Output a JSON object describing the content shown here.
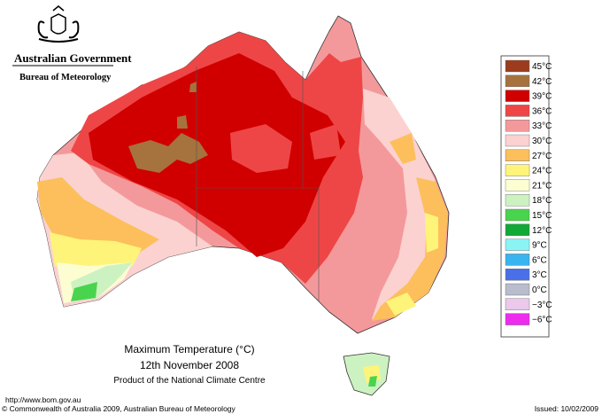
{
  "header": {
    "title": "Australian Government",
    "subtitle": "Bureau of Meteorology"
  },
  "map": {
    "title": "Maximum Temperature (°C)",
    "date": "12th November 2008",
    "credit": "Product of the National Climate Centre"
  },
  "legend": {
    "items": [
      {
        "label": "45°C",
        "color": "#9c3c1c"
      },
      {
        "label": "42°C",
        "color": "#a6723e"
      },
      {
        "label": "39°C",
        "color": "#d00000"
      },
      {
        "label": "36°C",
        "color": "#ee4646"
      },
      {
        "label": "33°C",
        "color": "#f4999b"
      },
      {
        "label": "30°C",
        "color": "#fbd2d0"
      },
      {
        "label": "27°C",
        "color": "#fcbf5c"
      },
      {
        "label": "24°C",
        "color": "#fff47a"
      },
      {
        "label": "21°C",
        "color": "#fdfdd2"
      },
      {
        "label": "18°C",
        "color": "#cdf2c2"
      },
      {
        "label": "15°C",
        "color": "#49d44e"
      },
      {
        "label": "12°C",
        "color": "#10a836"
      },
      {
        "label": "9°C",
        "color": "#8af4f4"
      },
      {
        "label": "6°C",
        "color": "#38b4f0"
      },
      {
        "label": "3°C",
        "color": "#4a70e8"
      },
      {
        "label": "0°C",
        "color": "#b8bccc"
      },
      {
        "label": "−3°C",
        "color": "#ecc8ec"
      },
      {
        "label": "−6°C",
        "color": "#ee2cee"
      }
    ]
  },
  "footer": {
    "url": "http://www.bom.gov.au",
    "copyright": "© Commonwealth of Australia 2009, Australian Bureau of Meteorology",
    "issued": "Issued: 10/02/2009"
  }
}
